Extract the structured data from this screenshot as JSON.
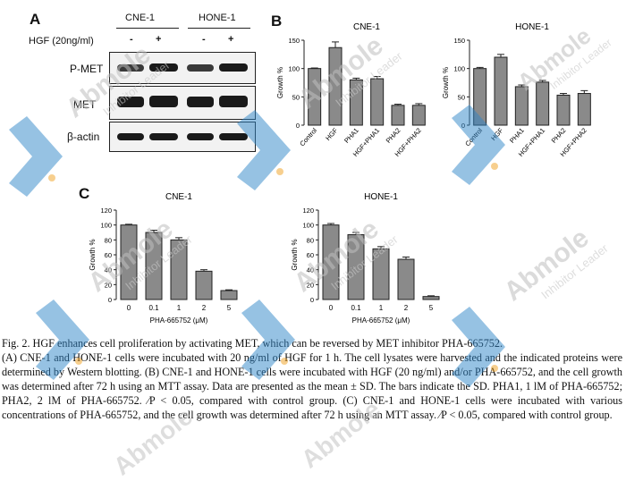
{
  "panels": {
    "a": "A",
    "b": "B",
    "c": "C"
  },
  "panel_a": {
    "col_groups": [
      "CNE-1",
      "HONE-1"
    ],
    "treatment_label": "HGF (20ng/ml)",
    "signs": [
      "-",
      "+",
      "-",
      "+"
    ],
    "rows": [
      "P-MET",
      "MET",
      "β-actin"
    ]
  },
  "chart_data": [
    {
      "type": "bar",
      "panel": "B",
      "title": "CNE-1",
      "ylabel": "Growth %",
      "ylim": [
        0,
        150
      ],
      "yticks": [
        0,
        50,
        100,
        150
      ],
      "categories": [
        "Control",
        "HGF",
        "PHA1",
        "HGF+PHA1",
        "PHA2",
        "HGF+PHA2"
      ],
      "values": [
        100,
        137,
        80,
        82,
        35,
        35
      ],
      "errors": [
        1,
        10,
        3,
        4,
        2,
        3
      ]
    },
    {
      "type": "bar",
      "panel": "B",
      "title": "HONE-1",
      "ylabel": "Growth %",
      "ylim": [
        0,
        150
      ],
      "yticks": [
        0,
        50,
        100,
        150
      ],
      "categories": [
        "Control",
        "HGF",
        "PHA1",
        "HGF+PHA1",
        "PHA2",
        "HGF+PHA2"
      ],
      "values": [
        100,
        120,
        68,
        76,
        53,
        56
      ],
      "errors": [
        2,
        5,
        3,
        3,
        3,
        5
      ]
    },
    {
      "type": "bar",
      "panel": "C",
      "title": "CNE-1",
      "ylabel": "Growth %",
      "xlabel": "PHA-665752 (μM)",
      "ylim": [
        0,
        120
      ],
      "yticks": [
        0,
        20,
        40,
        60,
        80,
        100,
        120
      ],
      "categories": [
        "0",
        "0.1",
        "1",
        "2",
        "5"
      ],
      "values": [
        100,
        90,
        80,
        38,
        12
      ],
      "errors": [
        1,
        3,
        3,
        2,
        1
      ]
    },
    {
      "type": "bar",
      "panel": "C",
      "title": "HONE-1",
      "ylabel": "Growth %",
      "xlabel": "PHA-665752 (μM)",
      "ylim": [
        0,
        120
      ],
      "yticks": [
        0,
        20,
        40,
        60,
        80,
        100,
        120
      ],
      "categories": [
        "0",
        "0.1",
        "1",
        "2",
        "5"
      ],
      "values": [
        100,
        87,
        68,
        54,
        4
      ],
      "errors": [
        2,
        3,
        3,
        3,
        1
      ]
    }
  ],
  "caption": [
    "Fig. 2. HGF enhances cell proliferation by activating MET, which can be reversed by MET inhibitor PHA-665752.",
    "(A) CNE-1 and HONE-1 cells were incubated with 20 ng/ml of HGF for 1 h. The cell lysates were harvested and the indicated proteins were determined by Western blotting. (B) CNE-1 and HONE-1 cells were incubated with HGF (20 ng/ml) and/or PHA-665752, and the cell growth was determined after 72 h using an MTT assay. Data are presented as the mean ± SD. The bars indicate the SD. PHA1, 1 lM of PHA-665752; PHA2, 2 lM of PHA-665752. ⁄P < 0.05, compared with control group. (C) CNE-1 and HONE-1 cells were incubated with various concentrations of PHA-665752, and the cell growth was determined after 72 h using an MTT assay. ⁄P < 0.05, compared with control group."
  ],
  "watermark": {
    "brand": "Abmole",
    "tagline": "Inhibitor Leader",
    "brand_color": "#2f86c8"
  }
}
